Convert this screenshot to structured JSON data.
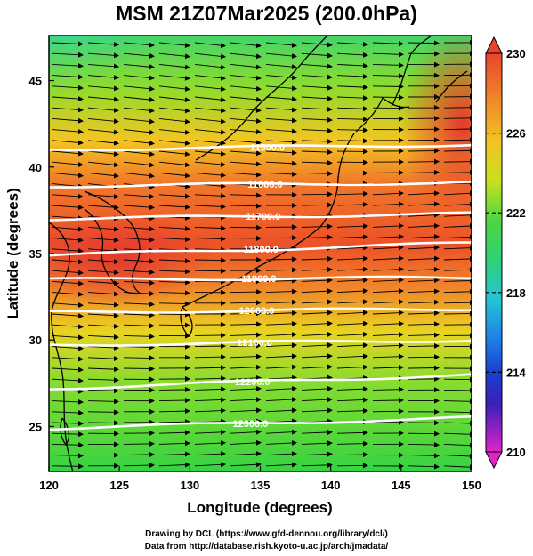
{
  "title": "MSM 21Z07Mar2025 (200.0hPa)",
  "axes": {
    "xlabel": "Longitude (degrees)",
    "ylabel": "Latitude  (degrees)",
    "xlim": [
      120,
      150
    ],
    "ylim": [
      22.4,
      47.6
    ],
    "x_ticks": [
      120,
      125,
      130,
      135,
      140,
      145,
      150
    ],
    "y_ticks": [
      25,
      30,
      35,
      40,
      45
    ]
  },
  "colorbar": {
    "min": 210,
    "max": 230,
    "tick_labels": [
      "230",
      "226",
      "222",
      "218",
      "214",
      "210"
    ],
    "tick_values": [
      230,
      226,
      222,
      218,
      214,
      210
    ]
  },
  "contours": [
    {
      "label": "11500.0",
      "lat_west": 41.0,
      "lat_east": 41.3
    },
    {
      "label": "11600.0",
      "lat_west": 38.9,
      "lat_east": 39.1
    },
    {
      "label": "11700.0",
      "lat_west": 37.0,
      "lat_east": 37.3
    },
    {
      "label": "11800.0",
      "lat_west": 34.9,
      "lat_east": 35.6
    },
    {
      "label": "11900.0",
      "lat_west": 33.5,
      "lat_east": 33.6
    },
    {
      "label": "12000.0",
      "lat_west": 31.6,
      "lat_east": 31.8
    },
    {
      "label": "12100.0",
      "lat_west": 29.7,
      "lat_east": 30.0
    },
    {
      "label": "12200.0",
      "lat_west": 27.2,
      "lat_east": 28.0
    },
    {
      "label": "12300.0",
      "lat_west": 24.9,
      "lat_east": 25.5
    }
  ],
  "credits": {
    "line1": "Drawing by DCL (https://www.gfd-dennou.org/library/dcl/)",
    "line2": "Data from http://database.rish.kyoto-u.ac.jp/arch/jmadata/"
  },
  "colors": {
    "warm": "#e8452a",
    "mid": "#f5d21a",
    "cool": "#3ccf3c",
    "contour": "#ffffff",
    "vector": "#000000"
  }
}
